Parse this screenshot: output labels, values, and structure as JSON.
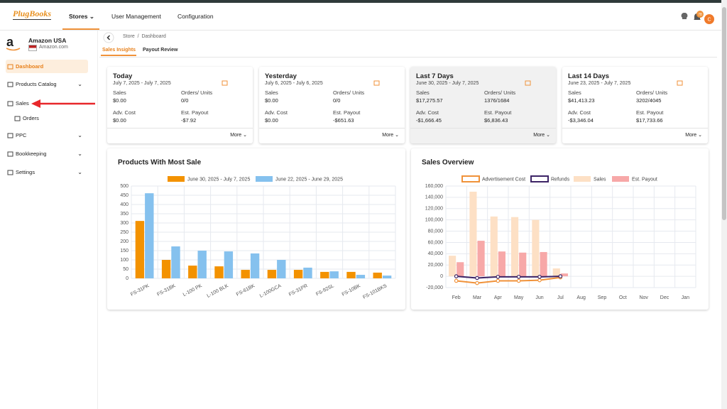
{
  "header": {
    "logo": "PlugBooks",
    "nav": [
      "Stores",
      "User Management",
      "Configuration"
    ],
    "badge": "78",
    "avatar": "C"
  },
  "sidebar": {
    "store_logo": "a",
    "store_name": "Amazon USA",
    "store_domain": "Amazon.com",
    "menu": [
      "Dashboard",
      "Products Catalog",
      "Sales",
      "Orders",
      "PPC",
      "Bookkeeping",
      "Settings"
    ]
  },
  "breadcrumb": {
    "items": [
      "Store",
      "Dashboard"
    ],
    "separator": "/"
  },
  "tabs": [
    "Sales Insights",
    "Payout Review"
  ],
  "cards": [
    {
      "title": "Today",
      "range": "July 7, 2025 - July 7, 2025",
      "sales_label": "Sales",
      "sales": "$0.00",
      "orders_label": "Orders/ Units",
      "orders": "0/0",
      "adv_label": "Adv. Cost",
      "adv": "$0.00",
      "payout_label": "Est. Payout",
      "payout": "-$7.92",
      "more": "More"
    },
    {
      "title": "Yesterday",
      "range": "July 6, 2025 - July 6, 2025",
      "sales_label": "Sales",
      "sales": "$0.00",
      "orders_label": "Orders/ Units",
      "orders": "0/0",
      "adv_label": "Adv. Cost",
      "adv": "$0.00",
      "payout_label": "Est. Payout",
      "payout": "-$651.63",
      "more": "More"
    },
    {
      "title": "Last 7 Days",
      "range": "June 30, 2025 - July 7, 2025",
      "sales_label": "Sales",
      "sales": "$17,275.57",
      "orders_label": "Orders/ Units",
      "orders": "1376/1684",
      "adv_label": "Adv. Cost",
      "adv": "-$1,666.45",
      "payout_label": "Est. Payout",
      "payout": "$6,836.43",
      "more": "More"
    },
    {
      "title": "Last 14 Days",
      "range": "June 23, 2025 - July 7, 2025",
      "sales_label": "Sales",
      "sales": "$41,413.23",
      "orders_label": "Orders/ Units",
      "orders": "3202/4045",
      "adv_label": "Adv. Cost",
      "adv": "-$3,346.04",
      "payout_label": "Est. Payout",
      "payout": "$17,733.66",
      "more": "More"
    }
  ],
  "chart_data": [
    {
      "type": "bar",
      "title": "Products With Most Sale",
      "categories": [
        "FS-31PK",
        "FS-31BK",
        "L-100 PK",
        "L-100 BLK",
        "FS-61BK",
        "L-100GCA",
        "FS-31PR",
        "FS-92SL",
        "FS-10BK",
        "FS-101BKS"
      ],
      "series": [
        {
          "name": "June 30, 2025 - July 7, 2025",
          "color": "#f39200",
          "values": [
            311,
            100,
            69,
            65,
            46,
            46,
            46,
            35,
            35,
            31
          ]
        },
        {
          "name": "June 22, 2025 - June 29, 2025",
          "color": "#85c1ee",
          "values": [
            461,
            173,
            150,
            146,
            135,
            100,
            58,
            38,
            19,
            15
          ]
        }
      ],
      "ylim": [
        0,
        500
      ],
      "yticks": [
        0,
        50,
        100,
        150,
        200,
        250,
        300,
        350,
        400,
        450,
        500
      ],
      "grid": true,
      "legend": "top"
    },
    {
      "type": "combo",
      "title": "Sales Overview",
      "categories": [
        "Feb",
        "Mar",
        "Apr",
        "May",
        "Jun",
        "Jul",
        "Aug",
        "Sep",
        "Oct",
        "Nov",
        "Dec",
        "Jan"
      ],
      "series": [
        {
          "name": "Advertisement Cost",
          "type": "line",
          "color": "#f0923a",
          "values": [
            -8000,
            -12000,
            -8000,
            -8000,
            -7000,
            -2000,
            null,
            null,
            null,
            null,
            null,
            null
          ]
        },
        {
          "name": "Refunds",
          "type": "line",
          "color": "#3d2466",
          "values": [
            0,
            -3000,
            -1000,
            -1000,
            -1000,
            0,
            null,
            null,
            null,
            null,
            null,
            null
          ]
        },
        {
          "name": "Sales",
          "type": "bar",
          "color": "#fde0c5",
          "values": [
            36500,
            150000,
            106000,
            105000,
            100000,
            14000,
            null,
            null,
            null,
            null,
            null,
            null
          ]
        },
        {
          "name": "Est. Payout",
          "type": "bar",
          "color": "#f7a8a8",
          "values": [
            25000,
            63000,
            44000,
            42000,
            43000,
            5000,
            null,
            null,
            null,
            null,
            null,
            null
          ]
        }
      ],
      "ylim": [
        -20000,
        160000
      ],
      "yticks": [
        {
          "value": -20000,
          "label": "-20,000"
        },
        0,
        {
          "value": 20000,
          "label": "20,000"
        },
        {
          "value": 40000,
          "label": "40,000"
        },
        {
          "value": 60000,
          "label": "60,000"
        },
        {
          "value": 80000,
          "label": "80,000"
        },
        {
          "value": 100000,
          "label": "100,000"
        },
        {
          "value": 120000,
          "label": "120,000"
        },
        {
          "value": 140000,
          "label": "140,000"
        },
        {
          "value": 160000,
          "label": "160,000"
        }
      ],
      "grid": true,
      "legend": "top"
    }
  ]
}
